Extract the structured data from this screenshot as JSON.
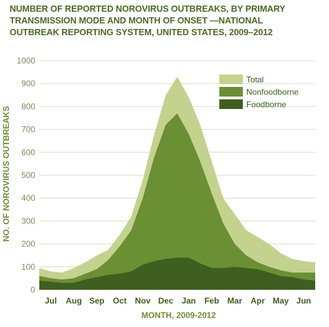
{
  "title_lines": [
    "NUMBER OF REPORTED NOROVIRUS OUTBREAKS, BY PRIMARY",
    "TRANSMISSION MODE AND MONTH OF ONSET —NATIONAL",
    "OUTBREAK REPORTING SYSTEM, UNITED STATES, 2009–2012"
  ],
  "chart_data": {
    "type": "area",
    "xlabel": "MONTH, 2009-2012",
    "ylabel": "NO. OF NOROVIRUS OUTBREAKS",
    "ylim": [
      0,
      1000
    ],
    "yticks": [
      0,
      100,
      200,
      300,
      400,
      500,
      600,
      700,
      800,
      900,
      1000
    ],
    "grid": true,
    "legend_position": "top-right",
    "x": [
      6.5,
      7,
      7.5,
      8,
      8.5,
      9,
      9.5,
      10,
      10.5,
      11,
      11.5,
      12,
      12.5,
      13,
      13.5,
      14,
      14.5,
      15,
      15.5,
      16,
      16.5,
      17,
      17.5,
      18,
      18.5
    ],
    "month_ticks": [
      {
        "label": "Jul",
        "x": 7
      },
      {
        "label": "Aug",
        "x": 8
      },
      {
        "label": "Sep",
        "x": 9
      },
      {
        "label": "Oct",
        "x": 10
      },
      {
        "label": "Nov",
        "x": 11
      },
      {
        "label": "Dec",
        "x": 12
      },
      {
        "label": "Jan",
        "x": 13
      },
      {
        "label": "Feb",
        "x": 14
      },
      {
        "label": "Mar",
        "x": 15
      },
      {
        "label": "Apr",
        "x": 16
      },
      {
        "label": "May",
        "x": 17
      },
      {
        "label": "Jun",
        "x": 18
      }
    ],
    "series": [
      {
        "name": "Total",
        "color": "#c3d28d",
        "values": [
          95,
          80,
          75,
          95,
          120,
          150,
          175,
          240,
          320,
          480,
          680,
          850,
          930,
          840,
          720,
          560,
          400,
          330,
          260,
          230,
          200,
          160,
          135,
          125,
          120
        ]
      },
      {
        "name": "Nonfoodborne",
        "color": "#6b8f33",
        "values": [
          60,
          50,
          45,
          50,
          70,
          90,
          130,
          190,
          260,
          400,
          580,
          720,
          770,
          680,
          560,
          420,
          290,
          200,
          150,
          120,
          100,
          85,
          75,
          75,
          75
        ]
      },
      {
        "name": "Foodborne",
        "color": "#3e5f1f",
        "values": [
          40,
          35,
          30,
          30,
          45,
          55,
          65,
          70,
          80,
          110,
          125,
          135,
          140,
          140,
          115,
          95,
          95,
          100,
          95,
          90,
          75,
          60,
          55,
          45,
          40
        ]
      }
    ]
  }
}
